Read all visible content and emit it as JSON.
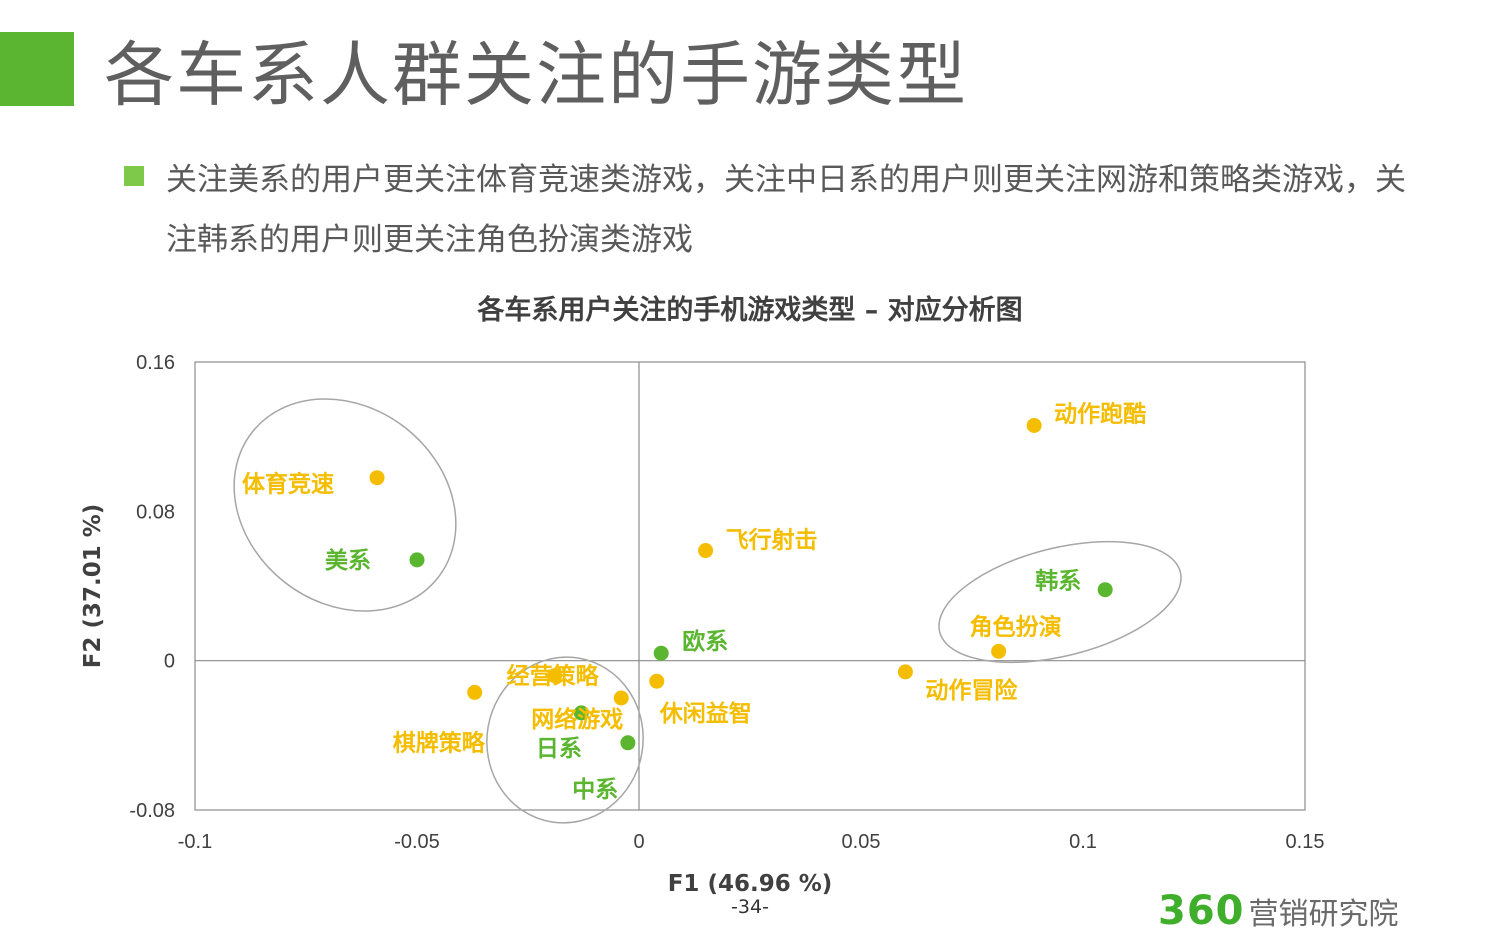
{
  "page": {
    "title": "各车系人群关注的手游类型",
    "bullet": "关注美系的用户更关注体育竞速类游戏，关注中日系的用户则更关注网游和策略类游戏，关注韩系的用户则更关注角色扮演类游戏",
    "page_number": "-34-",
    "logo_number": "360",
    "logo_text": "营销研究院"
  },
  "colors": {
    "accent_green": "#5cb531",
    "car_series_color": "#5ab52f",
    "game_type_color": "#f5bd00",
    "ellipse_stroke": "#a6a6a6"
  },
  "chart_data": {
    "type": "scatter",
    "title": "各车系用户关注的手机游戏类型 – 对应分析图",
    "xlabel": "F1 (46.96 %)",
    "ylabel": "F2 (37.01 %)",
    "xlim": [
      -0.1,
      0.15
    ],
    "ylim": [
      -0.08,
      0.16
    ],
    "x_ticks": [
      "-0.1",
      "-0.05",
      "0",
      "0.05",
      "0.1",
      "0.15"
    ],
    "y_ticks": [
      "-0.08",
      "0",
      "0.08",
      "0.16"
    ],
    "grid": false,
    "legend": "none",
    "series": [
      {
        "name": "车系",
        "points": [
          {
            "label": "美系",
            "x": -0.05,
            "y": 0.054
          },
          {
            "label": "韩系",
            "x": 0.105,
            "y": 0.038
          },
          {
            "label": "欧系",
            "x": 0.005,
            "y": 0.004
          },
          {
            "label": "日系",
            "x": -0.0025,
            "y": -0.044
          },
          {
            "label": "中系",
            "x": -0.013,
            "y": -0.028
          }
        ]
      },
      {
        "name": "手游类型",
        "points": [
          {
            "label": "动作跑酷",
            "x": 0.089,
            "y": 0.126
          },
          {
            "label": "体育竞速",
            "x": -0.059,
            "y": 0.098
          },
          {
            "label": "飞行射击",
            "x": 0.015,
            "y": 0.059
          },
          {
            "label": "角色扮演",
            "x": 0.081,
            "y": 0.005
          },
          {
            "label": "动作冒险",
            "x": 0.06,
            "y": -0.006
          },
          {
            "label": "经营策略",
            "x": -0.019,
            "y": -0.008
          },
          {
            "label": "休闲益智",
            "x": 0.004,
            "y": -0.011
          },
          {
            "label": "棋牌策略",
            "x": -0.037,
            "y": -0.017
          },
          {
            "label": "网络游戏",
            "x": -0.004,
            "y": -0.02
          }
        ]
      }
    ]
  }
}
